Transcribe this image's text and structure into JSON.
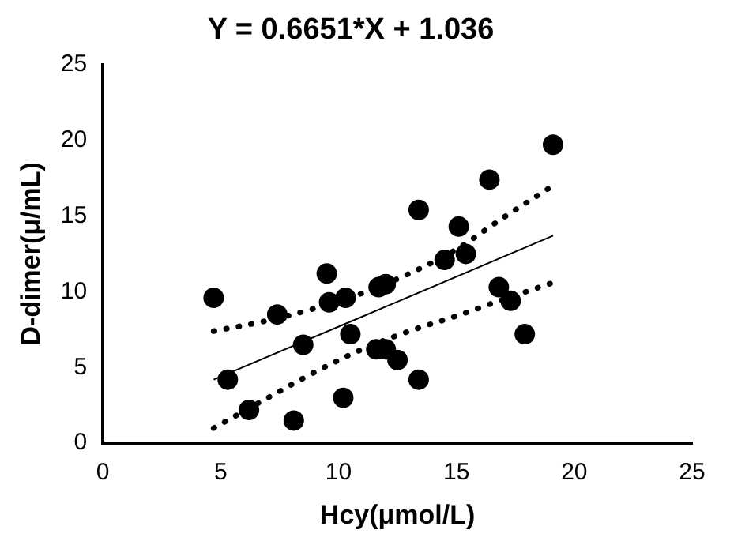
{
  "chart_data": {
    "type": "scatter",
    "title": "Y = 0.6651*X + 1.036",
    "xlabel": "Hcy(μmol/L)",
    "ylabel": "D-dimer(μ/mL)",
    "xlim": [
      0,
      25
    ],
    "xticks": [
      0,
      5,
      10,
      15,
      20,
      25
    ],
    "ylim": [
      0,
      25
    ],
    "yticks": [
      0,
      5,
      10,
      15,
      20,
      25
    ],
    "grid": false,
    "legend": false,
    "marker": "circle",
    "series": [
      {
        "type": "scatter",
        "color": "#000000",
        "x": [
          4.7,
          5.3,
          6.2,
          7.4,
          8.1,
          8.5,
          9.5,
          9.6,
          10.2,
          10.3,
          10.5,
          11.6,
          11.7,
          12,
          12,
          12.5,
          13.4,
          13.4,
          14.5,
          15.1,
          15.4,
          16.4,
          16.8,
          17.3,
          17.9,
          19.1
        ],
        "values": [
          9.6,
          4.2,
          2.2,
          8.5,
          1.5,
          6.5,
          11.2,
          9.3,
          3,
          9.6,
          7.2,
          6.2,
          10.3,
          10.5,
          6.2,
          5.5,
          15.4,
          4.2,
          12.1,
          14.3,
          12.5,
          17.4,
          10.3,
          9.4,
          7.2,
          19.7
        ]
      },
      {
        "type": "line",
        "color": "#000000",
        "line_style": "solid",
        "marker": "none",
        "x": [
          4.7,
          19.1
        ],
        "values": [
          4.2,
          13.7
        ]
      },
      {
        "type": "line",
        "color": "#000000",
        "line_style": "dotted",
        "marker": "none",
        "x": [
          4.7,
          7,
          9,
          11,
          13,
          15,
          17,
          19.1
        ],
        "values": [
          7.4,
          8.1,
          8.9,
          9.9,
          11.2,
          12.8,
          14.9,
          17
        ]
      },
      {
        "type": "line",
        "color": "#000000",
        "line_style": "dotted",
        "marker": "none",
        "x": [
          4.7,
          7,
          9,
          11,
          13,
          15,
          17,
          19.1
        ],
        "values": [
          1,
          3,
          4.7,
          6.2,
          7.4,
          8.4,
          9.5,
          10.6
        ]
      }
    ]
  }
}
